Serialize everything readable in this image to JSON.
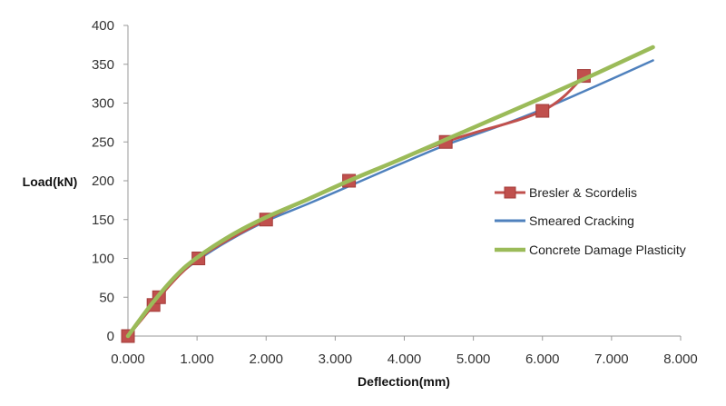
{
  "chart_data": {
    "type": "line",
    "title": "",
    "xlabel": "Deflection(mm)",
    "ylabel": "Load(kN)",
    "xlim": [
      0,
      8
    ],
    "ylim": [
      0,
      400
    ],
    "x_ticks": [
      "0.000",
      "1.000",
      "2.000",
      "3.000",
      "4.000",
      "5.000",
      "6.000",
      "7.000",
      "8.000"
    ],
    "y_ticks": [
      "0",
      "50",
      "100",
      "150",
      "200",
      "250",
      "300",
      "350",
      "400"
    ],
    "grid": false,
    "legend_position": "right",
    "series": [
      {
        "name": "Bresler & Scordelis",
        "color": "#c0504d",
        "marker": "square",
        "x": [
          0.0,
          0.37,
          0.45,
          1.02,
          2.0,
          3.2,
          4.6,
          6.0,
          6.6
        ],
        "y": [
          0,
          40,
          50,
          100,
          150,
          200,
          250,
          290,
          335
        ]
      },
      {
        "name": "Smeared Cracking",
        "color": "#4f81bd",
        "marker": "none",
        "x": [
          0.0,
          0.35,
          0.7,
          1.0,
          1.5,
          2.0,
          2.6,
          3.2,
          3.9,
          4.6,
          5.3,
          6.0,
          6.8,
          7.6
        ],
        "y": [
          0,
          40,
          75,
          97,
          125,
          148,
          170,
          193,
          220,
          246,
          268,
          292,
          323,
          355
        ]
      },
      {
        "name": "Concrete Damage Plasticity",
        "color": "#9bbb59",
        "marker": "none",
        "x": [
          0.0,
          0.35,
          0.7,
          1.0,
          1.5,
          2.0,
          2.6,
          3.2,
          3.9,
          4.6,
          5.3,
          6.0,
          6.8,
          7.6
        ],
        "y": [
          0,
          42,
          78,
          101,
          130,
          153,
          176,
          200,
          226,
          253,
          280,
          307,
          339,
          372
        ]
      }
    ]
  }
}
